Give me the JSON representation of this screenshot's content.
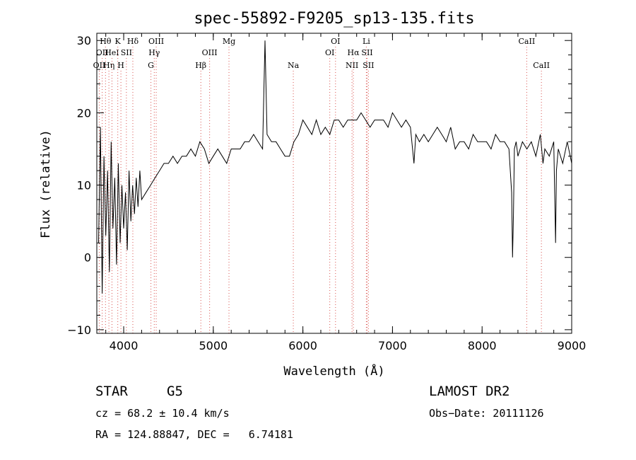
{
  "chart_data": {
    "type": "line",
    "title": "spec-55892-F9205_sp13-135.fits",
    "xlabel": "Wavelength (Å)",
    "ylabel": "Flux (relative)",
    "xlim": [
      3700,
      9000
    ],
    "ylim": [
      -10.5,
      31
    ],
    "x_ticks": [
      "4000",
      "5000",
      "6000",
      "7000",
      "8000",
      "9000"
    ],
    "y_ticks": [
      "30",
      "20",
      "10",
      "0",
      "−10"
    ],
    "grid": false,
    "series": [
      {
        "x": [
          3720,
          3740,
          3760,
          3780,
          3800,
          3820,
          3840,
          3860,
          3880,
          3900,
          3920,
          3940,
          3960,
          3980,
          4000,
          4020,
          4040,
          4060,
          4080,
          4100,
          4120,
          4140,
          4160,
          4180,
          4200,
          4250,
          4300,
          4350,
          4400,
          4450,
          4500,
          4550,
          4600,
          4650,
          4700,
          4750,
          4800,
          4850,
          4900,
          4950,
          5000,
          5050,
          5100,
          5150,
          5200,
          5250,
          5300,
          5350,
          5400,
          5450,
          5500,
          5550,
          5577,
          5600,
          5650,
          5700,
          5750,
          5800,
          5850,
          5900,
          5950,
          6000,
          6050,
          6100,
          6150,
          6200,
          6250,
          6300,
          6350,
          6400,
          6450,
          6500,
          6550,
          6600,
          6650,
          6700,
          6750,
          6800,
          6850,
          6900,
          6950,
          7000,
          7050,
          7100,
          7150,
          7200,
          7240,
          7260,
          7300,
          7350,
          7400,
          7450,
          7500,
          7550,
          7600,
          7650,
          7700,
          7750,
          7800,
          7850,
          7900,
          7950,
          8000,
          8050,
          8100,
          8150,
          8200,
          8250,
          8300,
          8330,
          8340,
          8350,
          8360,
          8380,
          8400,
          8450,
          8500,
          8550,
          8600,
          8650,
          8680,
          8700,
          8750,
          8800,
          8820,
          8830,
          8850,
          8900,
          8950,
          9000
        ],
        "y": [
          2,
          18,
          -5,
          14,
          3,
          12,
          -2,
          16,
          4,
          11,
          -1,
          13,
          2,
          10,
          4,
          9,
          1,
          12,
          5,
          10,
          6,
          11,
          7,
          12,
          8,
          9,
          10,
          11,
          12,
          13,
          13,
          14,
          13,
          14,
          14,
          15,
          14,
          16,
          15,
          13,
          14,
          15,
          14,
          13,
          15,
          15,
          15,
          16,
          16,
          17,
          16,
          15,
          30,
          17,
          16,
          16,
          15,
          14,
          14,
          16,
          17,
          19,
          18,
          17,
          19,
          17,
          18,
          17,
          19,
          19,
          18,
          19,
          19,
          19,
          20,
          19,
          18,
          19,
          19,
          19,
          18,
          20,
          19,
          18,
          19,
          18,
          13,
          17,
          16,
          17,
          16,
          17,
          18,
          17,
          16,
          18,
          15,
          16,
          16,
          15,
          17,
          16,
          16,
          16,
          15,
          17,
          16,
          16,
          15,
          9,
          0,
          6,
          15,
          16,
          14,
          16,
          15,
          16,
          14,
          17,
          13,
          15,
          14,
          16,
          2,
          12,
          15,
          13,
          16,
          13
        ]
      }
    ],
    "line_ids": [
      {
        "x": 3727,
        "label": "OII",
        "row": 2
      },
      {
        "x": 3760,
        "label": "OII",
        "row": 1
      },
      {
        "x": 3797,
        "label": "Hθ",
        "row": 0
      },
      {
        "x": 3835,
        "label": "Hη",
        "row": 2
      },
      {
        "x": 3869,
        "label": "HeI",
        "row": 1
      },
      {
        "x": 3934,
        "label": "K",
        "row": 0
      },
      {
        "x": 3969,
        "label": "H",
        "row": 2
      },
      {
        "x": 4030,
        "label": "SII",
        "row": 1
      },
      {
        "x": 4102,
        "label": "Hδ",
        "row": 0
      },
      {
        "x": 4304,
        "label": "G",
        "row": 2
      },
      {
        "x": 4341,
        "label": "Hγ",
        "row": 1
      },
      {
        "x": 4363,
        "label": "OIII",
        "row": 0
      },
      {
        "x": 4861,
        "label": "Hβ",
        "row": 2
      },
      {
        "x": 4959,
        "label": "OIII",
        "row": 1
      },
      {
        "x": 5175,
        "label": "Mg",
        "row": 0
      },
      {
        "x": 5893,
        "label": "Na",
        "row": 2
      },
      {
        "x": 6300,
        "label": "OI",
        "row": 1
      },
      {
        "x": 6364,
        "label": "OI",
        "row": 0
      },
      {
        "x": 6548,
        "label": "NII",
        "row": 2
      },
      {
        "x": 6563,
        "label": "Hα",
        "row": 1
      },
      {
        "x": 6708,
        "label": "Li",
        "row": 0
      },
      {
        "x": 6717,
        "label": "SII",
        "row": 1
      },
      {
        "x": 6731,
        "label": "SII",
        "row": 2
      },
      {
        "x": 8498,
        "label": "CaII",
        "row": 0
      },
      {
        "x": 8662,
        "label": "CaII",
        "row": 2
      }
    ]
  },
  "info": {
    "object_class": "STAR",
    "subclass": "G5",
    "survey": "LAMOST DR2",
    "cz": "cz = 68.2 ± 10.4 km/s",
    "obs_date": "Obs−Date: 20111126",
    "coords": "RA = 124.88847, DEC =   6.74181"
  }
}
